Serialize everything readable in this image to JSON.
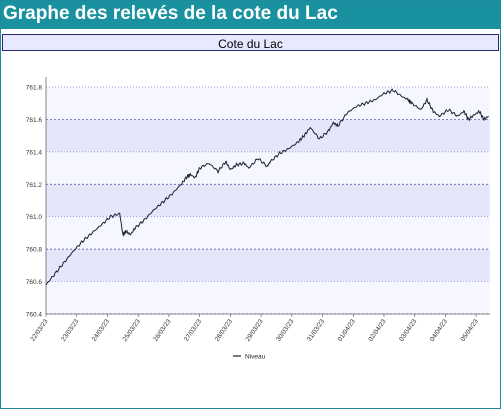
{
  "page": {
    "title": "Graphe des relevés de la cote du Lac"
  },
  "colors": {
    "header_bg": "#19919f",
    "header_text": "#ffffff",
    "plot_bg_light": "#f6f6ff",
    "plot_bg_dark": "#e6e6fb",
    "grid_line": "#2b3a9a",
    "series_line": "#1a2233"
  },
  "chart_data": {
    "type": "line",
    "title": "Cote du Lac",
    "xlabel": "",
    "ylabel": "",
    "ylim": [
      760.4,
      761.8
    ],
    "yticks": [
      "760.4",
      "760.6",
      "760.8",
      "761.0",
      "761.2",
      "761.4",
      "761.6",
      "761.8"
    ],
    "grid": true,
    "legend_position": "bottom-center",
    "x_tick_labels": [
      "22/03/23",
      "23/03/23",
      "24/03/23",
      "25/03/23",
      "26/03/23",
      "27/03/23",
      "28/03/23",
      "29/03/23",
      "30/03/23",
      "31/03/23",
      "01/04/23",
      "02/04/23",
      "03/04/23",
      "04/04/23",
      "05/04/23"
    ],
    "series": [
      {
        "name": "Niveau",
        "x_days": [
          0,
          0.3,
          0.6,
          0.9,
          1.2,
          1.5,
          1.8,
          2.1,
          2.4,
          2.5,
          2.6,
          2.75,
          2.9,
          3.2,
          3.5,
          3.8,
          4.1,
          4.4,
          4.6,
          4.7,
          4.85,
          5.0,
          5.3,
          5.6,
          5.85,
          6.0,
          6.2,
          6.45,
          6.6,
          6.9,
          7.2,
          7.3,
          7.6,
          7.9,
          8.2,
          8.4,
          8.6,
          8.9,
          9.2,
          9.35,
          9.5,
          9.8,
          10.1,
          10.4,
          10.7,
          11.0,
          11.3,
          11.6,
          11.8,
          11.9,
          12.2,
          12.4,
          12.6,
          12.8,
          13.1,
          13.4,
          13.6,
          13.75,
          13.95,
          14.1,
          14.25,
          14.4
        ],
        "values": [
          760.58,
          760.65,
          760.72,
          760.79,
          760.85,
          760.9,
          760.95,
          761.0,
          761.02,
          760.89,
          760.91,
          760.89,
          760.93,
          760.98,
          761.04,
          761.09,
          761.14,
          761.2,
          761.25,
          761.26,
          761.24,
          761.3,
          761.33,
          761.28,
          761.34,
          761.29,
          761.32,
          761.33,
          761.3,
          761.36,
          761.31,
          761.34,
          761.39,
          761.42,
          761.46,
          761.5,
          761.55,
          761.48,
          761.53,
          761.58,
          761.56,
          761.64,
          761.68,
          761.7,
          761.72,
          761.76,
          761.78,
          761.74,
          761.72,
          761.7,
          761.66,
          761.72,
          761.65,
          761.62,
          761.66,
          761.62,
          761.65,
          761.6,
          761.63,
          761.65,
          761.6,
          761.62
        ]
      }
    ]
  }
}
